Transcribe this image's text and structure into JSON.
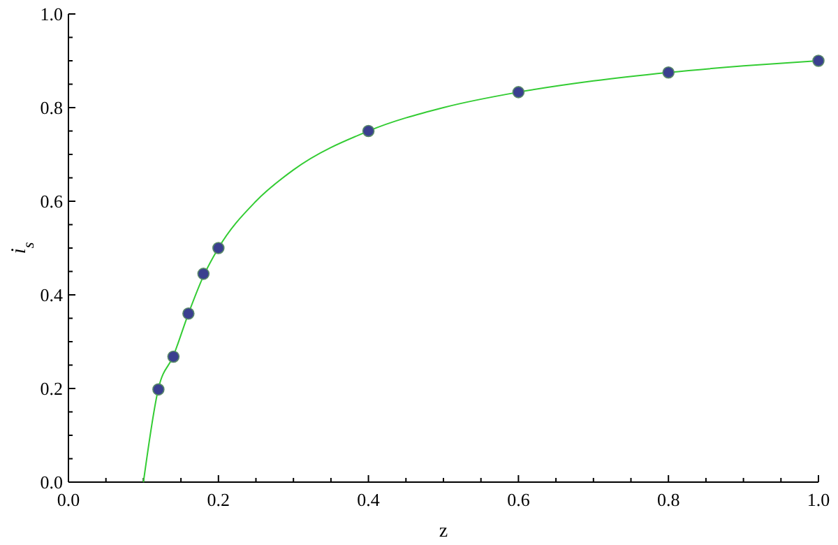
{
  "chart_data": {
    "type": "scatter",
    "xlabel": "z",
    "ylabel": "i$_{s}$",
    "xlim": [
      0,
      1
    ],
    "ylim": [
      0,
      1
    ],
    "xticks": [
      {
        "value": 0,
        "label": "0.0"
      },
      {
        "value": 0.05,
        "label": null
      },
      {
        "value": 0.1,
        "label": null
      },
      {
        "value": 0.15,
        "label": null
      },
      {
        "value": 0.2,
        "label": "0.2"
      },
      {
        "value": 0.25,
        "label": null
      },
      {
        "value": 0.3,
        "label": null
      },
      {
        "value": 0.35,
        "label": null
      },
      {
        "value": 0.4,
        "label": "0.4"
      },
      {
        "value": 0.45,
        "label": null
      },
      {
        "value": 0.5,
        "label": null
      },
      {
        "value": 0.55,
        "label": null
      },
      {
        "value": 0.6,
        "label": "0.6"
      },
      {
        "value": 0.65,
        "label": null
      },
      {
        "value": 0.7,
        "label": null
      },
      {
        "value": 0.75,
        "label": null
      },
      {
        "value": 0.8,
        "label": "0.8"
      },
      {
        "value": 0.85,
        "label": null
      },
      {
        "value": 0.9,
        "label": null
      },
      {
        "value": 0.95,
        "label": null
      },
      {
        "value": 1,
        "label": "1.0"
      }
    ],
    "yticks": [
      {
        "value": 0,
        "label": "0.0"
      },
      {
        "value": 0.05,
        "label": null
      },
      {
        "value": 0.1,
        "label": null
      },
      {
        "value": 0.15,
        "label": null
      },
      {
        "value": 0.2,
        "label": "0.2"
      },
      {
        "value": 0.25,
        "label": null
      },
      {
        "value": 0.3,
        "label": null
      },
      {
        "value": 0.35,
        "label": null
      },
      {
        "value": 0.4,
        "label": "0.4"
      },
      {
        "value": 0.45,
        "label": null
      },
      {
        "value": 0.5,
        "label": null
      },
      {
        "value": 0.55,
        "label": null
      },
      {
        "value": 0.6,
        "label": "0.6"
      },
      {
        "value": 0.65,
        "label": null
      },
      {
        "value": 0.7,
        "label": null
      },
      {
        "value": 0.75,
        "label": null
      },
      {
        "value": 0.8,
        "label": "0.8"
      },
      {
        "value": 0.85,
        "label": null
      },
      {
        "value": 0.9,
        "label": null
      },
      {
        "value": 0.95,
        "label": null
      },
      {
        "value": 1,
        "label": "1.0"
      }
    ],
    "grid": false,
    "series": [
      {
        "type": "line",
        "color": "#33cc33",
        "marker": "none",
        "line_style": "solid",
        "x": [
          0.1,
          0.12,
          0.14,
          0.16,
          0.18,
          0.2,
          0.25,
          0.3,
          0.4,
          0.5,
          0.6,
          0.7,
          0.8,
          0.9,
          1
        ],
        "values": [
          0,
          0.2,
          0.27,
          0.36,
          0.44,
          0.5,
          0.6,
          0.667,
          0.75,
          0.8,
          0.833,
          0.857,
          0.875,
          0.889,
          0.9
        ]
      },
      {
        "color": "#3a3f8f",
        "marker": "circle",
        "x": [
          0.12,
          0.14,
          0.16,
          0.18,
          0.2,
          0.4,
          0.6,
          0.8,
          1
        ],
        "values": [
          0.198,
          0.268,
          0.36,
          0.445,
          0.5,
          0.75,
          0.833,
          0.875,
          0.9
        ]
      }
    ]
  }
}
